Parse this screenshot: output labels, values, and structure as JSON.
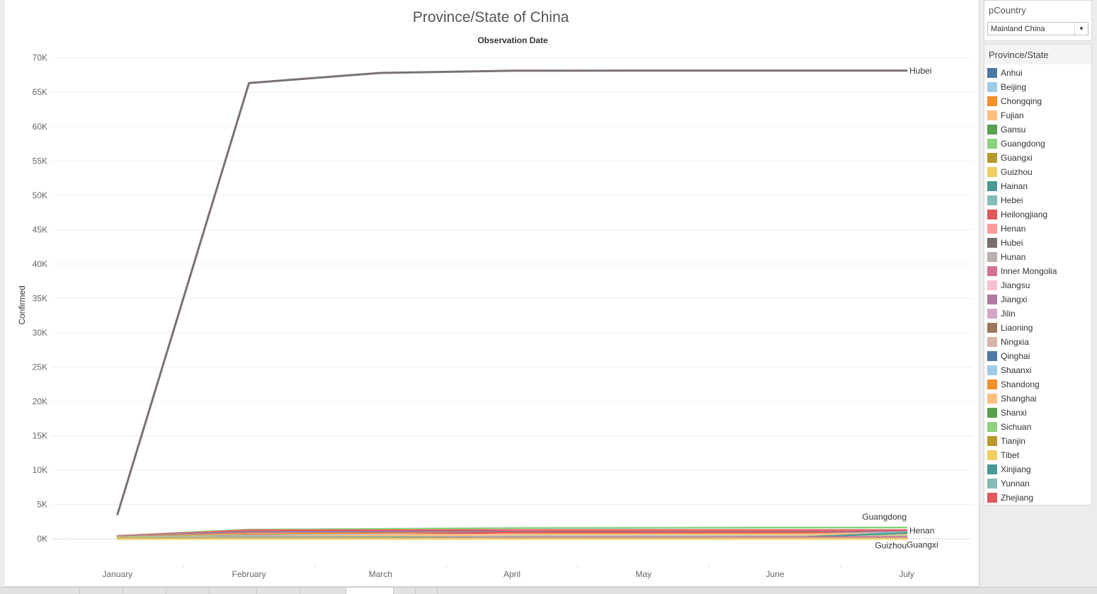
{
  "chart_data": {
    "type": "line",
    "title": "Province/State of China",
    "x_header": "Observation Date",
    "ylabel": "Confirmed",
    "categories": [
      "January",
      "February",
      "March",
      "April",
      "May",
      "June",
      "July"
    ],
    "y_ticks": [
      "70K",
      "65K",
      "60K",
      "55K",
      "50K",
      "45K",
      "40K",
      "35K",
      "30K",
      "25K",
      "20K",
      "15K",
      "10K",
      "5K",
      "0K"
    ],
    "ylim": [
      -3500,
      71000
    ],
    "grid": true,
    "series": [
      {
        "name": "Hubei",
        "color": "#7a7170",
        "values": [
          3554,
          66337,
          67801,
          68128,
          68134,
          68135,
          68138
        ],
        "end_label": "Hubei",
        "highlight": true
      },
      {
        "name": "Guangdong",
        "color": "#86cf7e",
        "values": [
          436,
          1349,
          1439,
          1566,
          1589,
          1634,
          1646
        ],
        "end_label": "Guangdong"
      },
      {
        "name": "Henan",
        "color": "#f49c9a",
        "values": [
          278,
          1272,
          1273,
          1276,
          1276,
          1276,
          1276
        ],
        "end_label": "Henan"
      },
      {
        "name": "Zhejiang",
        "color": "#e15759",
        "values": [
          428,
          1205,
          1218,
          1268,
          1268,
          1268,
          1269
        ]
      },
      {
        "name": "Hunan",
        "color": "#bab0ac",
        "values": [
          389,
          1016,
          1018,
          1019,
          1019,
          1019,
          1019
        ]
      },
      {
        "name": "Anhui",
        "color": "#4e79a7",
        "values": [
          297,
          990,
          990,
          991,
          991,
          991,
          991
        ]
      },
      {
        "name": "Jiangxi",
        "color": "#b07aa1",
        "values": [
          333,
          935,
          935,
          937,
          937,
          937,
          937
        ]
      },
      {
        "name": "Shandong",
        "color": "#f28e2b",
        "values": [
          225,
          756,
          767,
          792,
          792,
          792,
          792
        ]
      },
      {
        "name": "Jiangsu",
        "color": "#fabfd2",
        "values": [
          231,
          631,
          631,
          653,
          653,
          653,
          654
        ]
      },
      {
        "name": "Chongqing",
        "color": "#f28e2b",
        "values": [
          238,
          576,
          579,
          579,
          579,
          579,
          582
        ]
      },
      {
        "name": "Sichuan",
        "color": "#8cd17d",
        "values": [
          207,
          538,
          550,
          561,
          561,
          561,
          579
        ]
      },
      {
        "name": "Heilongjiang",
        "color": "#e15759",
        "values": [
          59,
          480,
          484,
          939,
          945,
          947,
          947
        ]
      },
      {
        "name": "Beijing",
        "color": "#a0cbe8",
        "values": [
          139,
          410,
          580,
          593,
          593,
          594,
          929
        ]
      },
      {
        "name": "Shanghai",
        "color": "#ffbe7d",
        "values": [
          135,
          337,
          509,
          637,
          659,
          667,
          700
        ]
      },
      {
        "name": "Hebei",
        "color": "#86bcb6",
        "values": [
          96,
          318,
          319,
          327,
          328,
          328,
          340
        ]
      },
      {
        "name": "Fujian",
        "color": "#ffbe7d",
        "values": [
          159,
          296,
          355,
          356,
          356,
          360,
          363
        ]
      },
      {
        "name": "Guangxi",
        "color": "#b6992d",
        "values": [
          100,
          252,
          254,
          254,
          254,
          254,
          254
        ],
        "end_label": "Guangxi"
      },
      {
        "name": "Shaanxi",
        "color": "#a0cbe8",
        "values": [
          101,
          249,
          255,
          308,
          308,
          317,
          317
        ]
      },
      {
        "name": "Yunnan",
        "color": "#86bcb6",
        "values": [
          80,
          174,
          176,
          185,
          185,
          185,
          186
        ]
      },
      {
        "name": "Hainan",
        "color": "#499894",
        "values": [
          57,
          168,
          168,
          168,
          168,
          171,
          171
        ]
      },
      {
        "name": "Guizhou",
        "color": "#f1ce63",
        "values": [
          56,
          146,
          146,
          147,
          147,
          147,
          147
        ],
        "end_label": "Guizhou"
      },
      {
        "name": "Tianjin",
        "color": "#b6992d",
        "values": [
          52,
          136,
          145,
          191,
          192,
          198,
          204
        ]
      },
      {
        "name": "Shanxi",
        "color": "#59a14f",
        "values": [
          39,
          133,
          135,
          197,
          198,
          198,
          198
        ]
      },
      {
        "name": "Liaoning",
        "color": "#9d7660",
        "values": [
          41,
          121,
          127,
          145,
          147,
          149,
          150
        ]
      },
      {
        "name": "Jilin",
        "color": "#d4a6c8",
        "values": [
          14,
          93,
          98,
          104,
          155,
          155,
          156
        ]
      },
      {
        "name": "Gansu",
        "color": "#59a14f",
        "values": [
          35,
          91,
          136,
          139,
          139,
          164,
          167
        ]
      },
      {
        "name": "Xinjiang",
        "color": "#499894",
        "values": [
          17,
          76,
          76,
          76,
          76,
          76,
          860
        ]
      },
      {
        "name": "Inner Mongolia",
        "color": "#d37295",
        "values": [
          20,
          75,
          75,
          194,
          221,
          237,
          247
        ]
      },
      {
        "name": "Ningxia",
        "color": "#d7b5a6",
        "values": [
          26,
          75,
          75,
          75,
          75,
          75,
          75
        ]
      },
      {
        "name": "Qinghai",
        "color": "#4e79a7",
        "values": [
          8,
          18,
          18,
          18,
          18,
          18,
          18
        ]
      },
      {
        "name": "Tibet",
        "color": "#f1ce63",
        "values": [
          0,
          1,
          1,
          1,
          1,
          1,
          1
        ]
      }
    ]
  },
  "filter": {
    "title": "pCountry",
    "value": "Mainland China",
    "arrow_icon": "▼"
  },
  "legend": {
    "title": "Province/State",
    "items": [
      {
        "label": "Anhui",
        "color": "#4e79a7"
      },
      {
        "label": "Beijing",
        "color": "#a0cbe8"
      },
      {
        "label": "Chongqing",
        "color": "#f28e2b"
      },
      {
        "label": "Fujian",
        "color": "#ffbe7d"
      },
      {
        "label": "Gansu",
        "color": "#59a14f"
      },
      {
        "label": "Guangdong",
        "color": "#8cd17d"
      },
      {
        "label": "Guangxi",
        "color": "#b6992d"
      },
      {
        "label": "Guizhou",
        "color": "#f1ce63"
      },
      {
        "label": "Hainan",
        "color": "#499894"
      },
      {
        "label": "Hebei",
        "color": "#86bcb6"
      },
      {
        "label": "Heilongjiang",
        "color": "#e15759"
      },
      {
        "label": "Henan",
        "color": "#ff9d9a"
      },
      {
        "label": "Hubei",
        "color": "#79706e"
      },
      {
        "label": "Hunan",
        "color": "#bab0ac"
      },
      {
        "label": "Inner Mongolia",
        "color": "#d37295"
      },
      {
        "label": "Jiangsu",
        "color": "#fabfd2"
      },
      {
        "label": "Jiangxi",
        "color": "#b07aa1"
      },
      {
        "label": "Jilin",
        "color": "#d4a6c8"
      },
      {
        "label": "Liaoning",
        "color": "#9d7660"
      },
      {
        "label": "Ningxia",
        "color": "#d7b5a6"
      },
      {
        "label": "Qinghai",
        "color": "#4e79a7"
      },
      {
        "label": "Shaanxi",
        "color": "#a0cbe8"
      },
      {
        "label": "Shandong",
        "color": "#f28e2b"
      },
      {
        "label": "Shanghai",
        "color": "#ffbe7d"
      },
      {
        "label": "Shanxi",
        "color": "#59a14f"
      },
      {
        "label": "Sichuan",
        "color": "#8cd17d"
      },
      {
        "label": "Tianjin",
        "color": "#b6992d"
      },
      {
        "label": "Tibet",
        "color": "#f1ce63"
      },
      {
        "label": "Xinjiang",
        "color": "#499894"
      },
      {
        "label": "Yunnan",
        "color": "#86bcb6"
      },
      {
        "label": "Zhejiang",
        "color": "#e15759"
      }
    ]
  }
}
